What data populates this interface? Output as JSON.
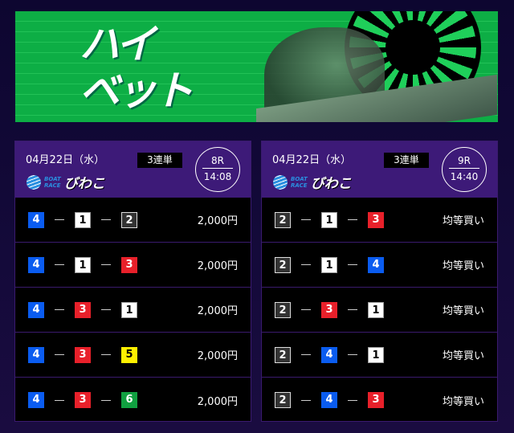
{
  "banner": {
    "title_line1": "ハイ",
    "title_line2": "ベット"
  },
  "boat_colors": {
    "1": "#ffffff",
    "2": "#333333",
    "3": "#e8202a",
    "4": "#0a5cf0",
    "5": "#fff000",
    "6": "#10a040"
  },
  "cards": [
    {
      "date": "04月22日（水）",
      "bet_type": "3連単",
      "venue_logo": "BOAT RACE びわこ",
      "race": "8R",
      "time": "14:08",
      "bets": [
        {
          "combo": [
            "4",
            "1",
            "2"
          ],
          "amount": "2,000円"
        },
        {
          "combo": [
            "4",
            "1",
            "3"
          ],
          "amount": "2,000円"
        },
        {
          "combo": [
            "4",
            "3",
            "1"
          ],
          "amount": "2,000円"
        },
        {
          "combo": [
            "4",
            "3",
            "5"
          ],
          "amount": "2,000円"
        },
        {
          "combo": [
            "4",
            "3",
            "6"
          ],
          "amount": "2,000円"
        }
      ]
    },
    {
      "date": "04月22日（水）",
      "bet_type": "3連単",
      "venue_logo": "BOAT RACE びわこ",
      "race": "9R",
      "time": "14:40",
      "bets": [
        {
          "combo": [
            "2",
            "1",
            "3"
          ],
          "amount": "均等買い"
        },
        {
          "combo": [
            "2",
            "1",
            "4"
          ],
          "amount": "均等買い"
        },
        {
          "combo": [
            "2",
            "3",
            "1"
          ],
          "amount": "均等買い"
        },
        {
          "combo": [
            "2",
            "4",
            "1"
          ],
          "amount": "均等買い"
        },
        {
          "combo": [
            "2",
            "4",
            "3"
          ],
          "amount": "均等買い"
        }
      ]
    }
  ]
}
